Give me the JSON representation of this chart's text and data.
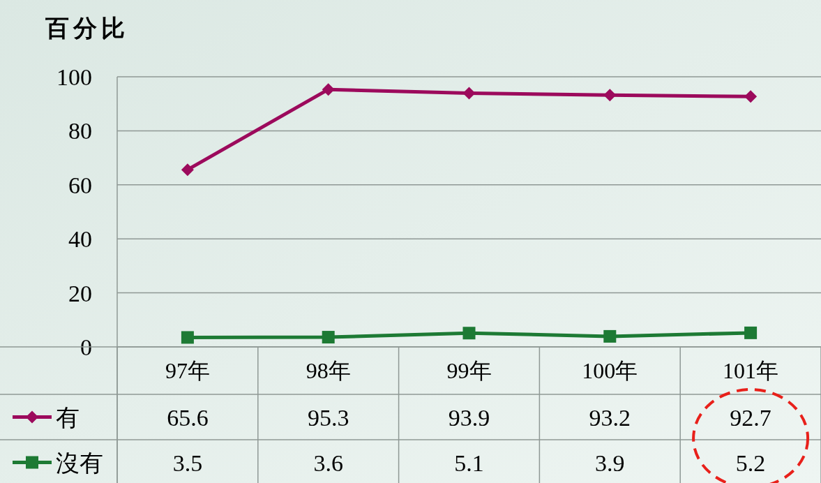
{
  "chart_data": {
    "type": "line",
    "ylabel": "百分比",
    "categories": [
      "97年",
      "98年",
      "99年",
      "100年",
      "101年"
    ],
    "series": [
      {
        "name": "有",
        "color": "#9c0a5c",
        "marker": "diamond",
        "values": [
          65.6,
          95.3,
          93.9,
          93.2,
          92.7
        ]
      },
      {
        "name": "沒有",
        "color": "#1d7a34",
        "marker": "square",
        "values": [
          3.5,
          3.6,
          5.1,
          3.9,
          5.2
        ]
      }
    ],
    "ylim": [
      0,
      100
    ],
    "yticks": [
      0,
      20,
      40,
      60,
      80,
      100
    ],
    "grid": "y",
    "data_labels": true,
    "legend": "bottom"
  }
}
